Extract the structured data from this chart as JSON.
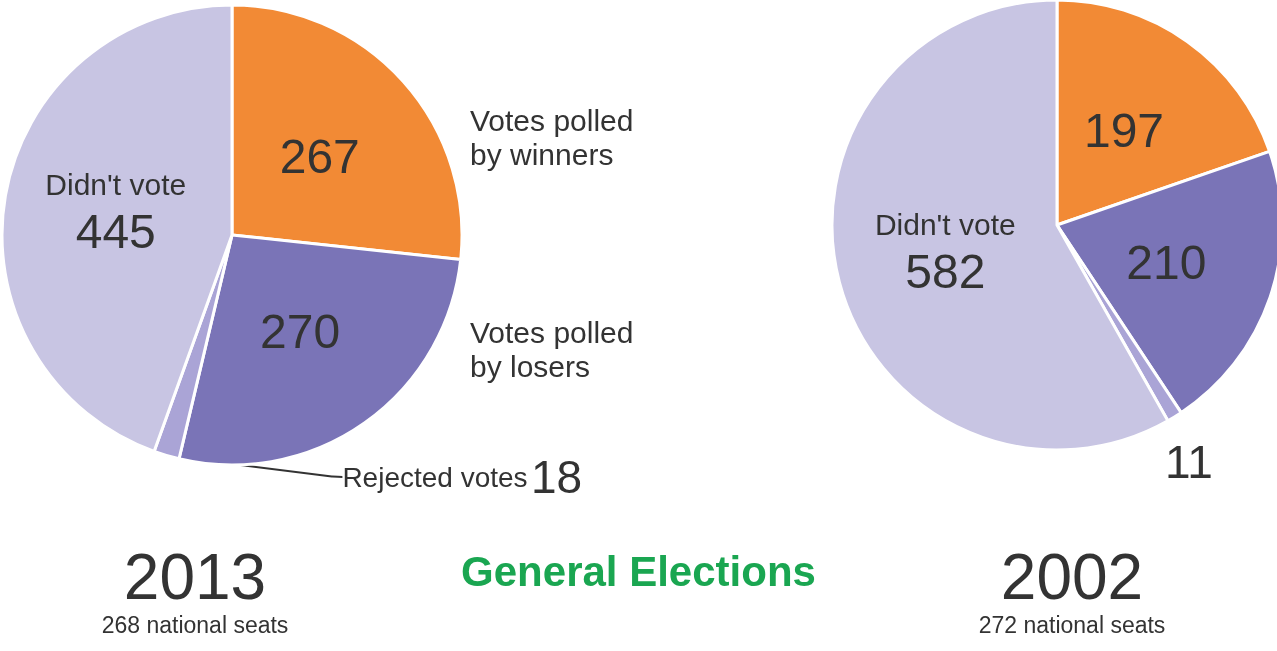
{
  "chart_data": [
    {
      "type": "pie",
      "title": "2013",
      "subtitle": "268 national seats",
      "annotations": [
        "General Elections"
      ],
      "categories": [
        "Votes polled by winners",
        "Votes polled by losers",
        "Rejected votes",
        "Didn't vote"
      ],
      "values": [
        267,
        270,
        18,
        445
      ],
      "colors": [
        "#f28a35",
        "#7a74b7",
        "#aaa4d6",
        "#c8c5e3"
      ],
      "data_labels": true
    },
    {
      "type": "pie",
      "title": "2002",
      "subtitle": "272 national seats",
      "categories": [
        null,
        null,
        null,
        "Didn't vote"
      ],
      "values": [
        197,
        210,
        11,
        582
      ],
      "colors": [
        "#f28a35",
        "#7a74b7",
        "#aaa4d6",
        "#c8c5e3"
      ],
      "data_labels": true
    }
  ]
}
